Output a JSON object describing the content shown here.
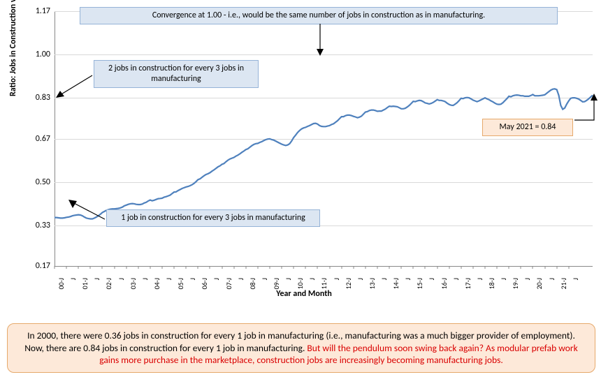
{
  "chart": {
    "type": "line",
    "y_axis_title": "Ratio: Jobs in Construction vs Manufacturing",
    "x_axis_title": "Year and Month",
    "ylim": [
      0.17,
      1.17
    ],
    "y_ticks": [
      0.17,
      0.33,
      0.5,
      0.67,
      0.83,
      1.0,
      1.17
    ],
    "y_tick_labels": [
      "0.17",
      "0.33",
      "0.50",
      "0.67",
      "0.83",
      "1.00",
      "1.17"
    ],
    "x_labels": [
      "00-J",
      "J",
      "01-J",
      "J",
      "02-J",
      "J",
      "03-J",
      "J",
      "04-J",
      "J",
      "05-J",
      "J",
      "06-J",
      "J",
      "07-J",
      "J",
      "08-J",
      "J",
      "09-J",
      "J",
      "10-J",
      "J",
      "11-J",
      "J",
      "12-J",
      "J",
      "13-J",
      "J",
      "14-J",
      "J",
      "15-J",
      "J",
      "16-J",
      "J",
      "17-J",
      "J",
      "18-J",
      "J",
      "19-J",
      "J",
      "20-J",
      "J",
      "21-J",
      "J"
    ],
    "line_color": "#4f81bd",
    "line_width": 2.2,
    "grid_color": "#d9d9d9",
    "background_color": "#ffffff",
    "axis_color": "#888888",
    "tick_fontsize": 12,
    "axis_title_fontsize": 12,
    "series": [
      0.36,
      0.36,
      0.359,
      0.358,
      0.358,
      0.359,
      0.361,
      0.362,
      0.364,
      0.367,
      0.369,
      0.37,
      0.371,
      0.37,
      0.367,
      0.362,
      0.358,
      0.356,
      0.355,
      0.355,
      0.358,
      0.362,
      0.367,
      0.373,
      0.38,
      0.384,
      0.388,
      0.391,
      0.393,
      0.394,
      0.394,
      0.395,
      0.396,
      0.398,
      0.401,
      0.406,
      0.409,
      0.412,
      0.414,
      0.415,
      0.414,
      0.412,
      0.411,
      0.411,
      0.413,
      0.417,
      0.42,
      0.425,
      0.429,
      0.426,
      0.428,
      0.431,
      0.434,
      0.435,
      0.436,
      0.44,
      0.442,
      0.445,
      0.448,
      0.454,
      0.46,
      0.461,
      0.466,
      0.47,
      0.474,
      0.477,
      0.48,
      0.482,
      0.485,
      0.489,
      0.494,
      0.501,
      0.509,
      0.512,
      0.518,
      0.524,
      0.529,
      0.532,
      0.536,
      0.542,
      0.547,
      0.553,
      0.559,
      0.563,
      0.569,
      0.572,
      0.579,
      0.585,
      0.59,
      0.593,
      0.596,
      0.601,
      0.605,
      0.61,
      0.616,
      0.621,
      0.627,
      0.63,
      0.636,
      0.642,
      0.647,
      0.65,
      0.651,
      0.655,
      0.658,
      0.662,
      0.666,
      0.668,
      0.669,
      0.666,
      0.664,
      0.66,
      0.656,
      0.652,
      0.648,
      0.645,
      0.643,
      0.645,
      0.65,
      0.661,
      0.674,
      0.684,
      0.694,
      0.702,
      0.708,
      0.712,
      0.714,
      0.718,
      0.721,
      0.725,
      0.729,
      0.73,
      0.727,
      0.721,
      0.718,
      0.717,
      0.717,
      0.719,
      0.721,
      0.725,
      0.728,
      0.734,
      0.74,
      0.748,
      0.756,
      0.756,
      0.76,
      0.762,
      0.762,
      0.76,
      0.757,
      0.755,
      0.752,
      0.754,
      0.758,
      0.766,
      0.774,
      0.776,
      0.78,
      0.782,
      0.782,
      0.78,
      0.777,
      0.778,
      0.778,
      0.782,
      0.786,
      0.792,
      0.797,
      0.796,
      0.797,
      0.796,
      0.795,
      0.791,
      0.787,
      0.787,
      0.789,
      0.794,
      0.8,
      0.808,
      0.816,
      0.815,
      0.818,
      0.82,
      0.819,
      0.815,
      0.81,
      0.808,
      0.806,
      0.808,
      0.812,
      0.817,
      0.823,
      0.82,
      0.82,
      0.818,
      0.815,
      0.809,
      0.804,
      0.801,
      0.8,
      0.805,
      0.811,
      0.819,
      0.828,
      0.827,
      0.83,
      0.831,
      0.83,
      0.826,
      0.821,
      0.818,
      0.815,
      0.818,
      0.822,
      0.826,
      0.83,
      0.826,
      0.823,
      0.818,
      0.814,
      0.809,
      0.805,
      0.804,
      0.805,
      0.811,
      0.819,
      0.827,
      0.836,
      0.834,
      0.838,
      0.84,
      0.841,
      0.84,
      0.838,
      0.838,
      0.836,
      0.836,
      0.836,
      0.839,
      0.843,
      0.838,
      0.838,
      0.838,
      0.839,
      0.84,
      0.842,
      0.848,
      0.854,
      0.86,
      0.864,
      0.865,
      0.862,
      0.84,
      0.8,
      0.785,
      0.79,
      0.805,
      0.818,
      0.828,
      0.83,
      0.83,
      0.828,
      0.825,
      0.82,
      0.814,
      0.815,
      0.82,
      0.826,
      0.833,
      0.84
    ]
  },
  "callouts": {
    "convergence": "Convergence at 1.00 - i.e., would be the same number of jobs in construction as in manufacturing.",
    "two_for_three": "2 jobs in construction for every 3 jobs in manufacturing",
    "one_for_three": "1 job in construction for every 3 jobs in manufacturing",
    "may_2021": "May 2021 = 0.84",
    "blue_bg": "#dce6f2",
    "blue_border": "#95b3d7",
    "orange_bg": "#fde9d9",
    "orange_border": "#e6a96b"
  },
  "caption": {
    "part1": "In 2000, there were 0.36 jobs in construction for every 1 job in manufacturing (i.e., manufacturing was a much bigger provider of employment). Now, there are 0.84 jobs in construction for every 1 job in manufacturing. ",
    "part2": "But will the pendulum soon swing back again? As modular prefab work gains more purchase in the marketplace, construction jobs are increasingly becoming manufacturing jobs.",
    "part2_color": "#d90000",
    "bg": "#fde9d9",
    "border": "#e6a96b",
    "border_radius": 10,
    "fontsize": 13.5
  }
}
